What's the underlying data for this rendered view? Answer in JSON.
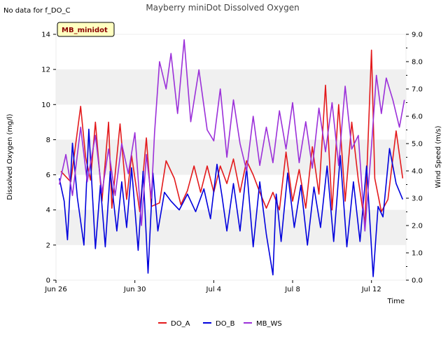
{
  "no_data_text": "No data for f_DO_C",
  "chart_data": {
    "type": "line",
    "title": "Mayberry miniDot Dissolved Oxygen",
    "xlabel": "Time",
    "ylabel": "Dissolved Oxygen (mg/l)",
    "y2label": "Wind Speed (m/s)",
    "badge": "MB_minidot",
    "xlim": [
      "2023-06-26",
      "2023-07-13T18:00"
    ],
    "xticks": [
      "Jun 26",
      "Jun 30",
      "Jul 4",
      "Jul 8",
      "Jul 12"
    ],
    "ylim": [
      0,
      14
    ],
    "yticks": [
      "0",
      "2",
      "4",
      "6",
      "8",
      "10",
      "12",
      "14"
    ],
    "y2lim": [
      0,
      9
    ],
    "y2ticks": [
      "0.0",
      "1.0",
      "2.0",
      "3.0",
      "4.0",
      "5.0",
      "6.0",
      "7.0",
      "8.0",
      "9.0"
    ],
    "shaded_bands": [
      [
        2,
        4
      ],
      [
        6,
        8
      ],
      [
        10,
        12
      ]
    ],
    "legend_position": "bottom",
    "series": [
      {
        "name": "DO_A",
        "color": "#e31a1c",
        "axis": "left",
        "x": [
          "2023-06-26T06:00",
          "2023-06-26T18:00",
          "2023-06-27T06:00",
          "2023-06-27T12:00",
          "2023-06-27T18:00",
          "2023-06-28T00:00",
          "2023-06-28T08:00",
          "2023-06-28T16:00",
          "2023-06-28T20:00",
          "2023-06-29T06:00",
          "2023-06-29T14:00",
          "2023-06-29T20:00",
          "2023-06-30T06:00",
          "2023-06-30T14:00",
          "2023-06-30T20:00",
          "2023-07-01T06:00",
          "2023-07-01T14:00",
          "2023-07-02T00:00",
          "2023-07-02T08:00",
          "2023-07-02T16:00",
          "2023-07-03T00:00",
          "2023-07-03T08:00",
          "2023-07-03T16:00",
          "2023-07-04T00:00",
          "2023-07-04T08:00",
          "2023-07-04T16:00",
          "2023-07-05T00:00",
          "2023-07-05T08:00",
          "2023-07-05T16:00",
          "2023-07-06T00:00",
          "2023-07-06T08:00",
          "2023-07-06T16:00",
          "2023-07-07T00:00",
          "2023-07-07T08:00",
          "2023-07-07T16:00",
          "2023-07-08T00:00",
          "2023-07-08T08:00",
          "2023-07-08T16:00",
          "2023-07-09T00:00",
          "2023-07-09T08:00",
          "2023-07-09T16:00",
          "2023-07-10T00:00",
          "2023-07-10T08:00",
          "2023-07-10T16:00",
          "2023-07-11T00:00",
          "2023-07-11T08:00",
          "2023-07-11T16:00",
          "2023-07-12T00:00",
          "2023-07-12T04:00",
          "2023-07-12T12:00",
          "2023-07-12T20:00",
          "2023-07-13T06:00",
          "2023-07-13T14:00"
        ],
        "y": [
          6.2,
          5.6,
          9.9,
          7.0,
          5.7,
          9.0,
          4.5,
          9.0,
          4.1,
          8.9,
          4.6,
          7.1,
          3.9,
          8.1,
          4.2,
          4.4,
          6.8,
          5.8,
          4.3,
          5.1,
          6.5,
          5.0,
          6.5,
          5.0,
          6.5,
          5.5,
          6.9,
          5.0,
          6.8,
          6.0,
          5.0,
          4.1,
          5.0,
          4.0,
          7.3,
          4.5,
          6.3,
          4.1,
          7.6,
          4.9,
          11.1,
          4.0,
          10.0,
          4.5,
          9.0,
          5.7,
          3.2,
          13.1,
          5.8,
          3.9,
          4.6,
          8.5,
          5.8
        ]
      },
      {
        "name": "DO_B",
        "color": "#0000dd",
        "axis": "left",
        "x": [
          "2023-06-26T04:00",
          "2023-06-26T10:00",
          "2023-06-26T14:00",
          "2023-06-26T20:00",
          "2023-06-27T02:00",
          "2023-06-27T10:00",
          "2023-06-27T16:00",
          "2023-06-28T00:00",
          "2023-06-28T06:00",
          "2023-06-28T12:00",
          "2023-06-28T18:00",
          "2023-06-29T02:00",
          "2023-06-29T08:00",
          "2023-06-29T14:00",
          "2023-06-29T20:00",
          "2023-06-30T04:00",
          "2023-06-30T10:00",
          "2023-06-30T16:00",
          "2023-06-30T22:00",
          "2023-07-01T04:00",
          "2023-07-01T12:00",
          "2023-07-01T20:00",
          "2023-07-02T06:00",
          "2023-07-02T16:00",
          "2023-07-03T02:00",
          "2023-07-03T12:00",
          "2023-07-03T20:00",
          "2023-07-04T04:00",
          "2023-07-04T10:00",
          "2023-07-04T16:00",
          "2023-07-05T00:00",
          "2023-07-05T08:00",
          "2023-07-05T16:00",
          "2023-07-06T00:00",
          "2023-07-06T08:00",
          "2023-07-06T16:00",
          "2023-07-07T00:00",
          "2023-07-07T04:00",
          "2023-07-07T10:00",
          "2023-07-07T18:00",
          "2023-07-08T02:00",
          "2023-07-08T10:00",
          "2023-07-08T18:00",
          "2023-07-09T02:00",
          "2023-07-09T10:00",
          "2023-07-09T18:00",
          "2023-07-10T02:00",
          "2023-07-10T10:00",
          "2023-07-10T18:00",
          "2023-07-11T02:00",
          "2023-07-11T10:00",
          "2023-07-11T18:00",
          "2023-07-12T02:00",
          "2023-07-12T08:00",
          "2023-07-12T14:00",
          "2023-07-12T22:00",
          "2023-07-13T06:00",
          "2023-07-13T14:00"
        ],
        "y": [
          5.8,
          4.5,
          2.3,
          7.8,
          4.7,
          2.0,
          8.6,
          1.8,
          5.4,
          1.9,
          6.2,
          2.8,
          5.6,
          3.0,
          6.4,
          1.7,
          6.2,
          0.4,
          6.1,
          2.8,
          5.0,
          4.5,
          4.0,
          4.9,
          3.9,
          5.2,
          3.5,
          6.6,
          4.8,
          2.8,
          5.5,
          2.8,
          6.4,
          1.9,
          5.6,
          2.6,
          0.3,
          4.9,
          2.2,
          6.1,
          3.0,
          5.4,
          2.0,
          5.3,
          3.0,
          6.5,
          2.2,
          7.1,
          1.9,
          5.6,
          2.2,
          6.5,
          0.2,
          4.2,
          3.6,
          7.5,
          5.5,
          4.6
        ]
      },
      {
        "name": "MB_WS",
        "color": "#9b30d9",
        "axis": "right",
        "x": [
          "2023-06-26T04:00",
          "2023-06-26T12:00",
          "2023-06-26T20:00",
          "2023-06-27T06:00",
          "2023-06-27T14:00",
          "2023-06-28T00:00",
          "2023-06-28T08:00",
          "2023-06-28T16:00",
          "2023-06-29T00:00",
          "2023-06-29T08:00",
          "2023-06-29T16:00",
          "2023-06-30T00:00",
          "2023-06-30T08:00",
          "2023-06-30T14:00",
          "2023-06-30T20:00",
          "2023-07-01T00:00",
          "2023-07-01T06:00",
          "2023-07-01T14:00",
          "2023-07-01T20:00",
          "2023-07-02T04:00",
          "2023-07-02T12:00",
          "2023-07-02T20:00",
          "2023-07-03T06:00",
          "2023-07-03T16:00",
          "2023-07-04T00:00",
          "2023-07-04T08:00",
          "2023-07-04T16:00",
          "2023-07-05T00:00",
          "2023-07-05T08:00",
          "2023-07-05T16:00",
          "2023-07-06T00:00",
          "2023-07-06T08:00",
          "2023-07-06T16:00",
          "2023-07-07T00:00",
          "2023-07-07T08:00",
          "2023-07-07T16:00",
          "2023-07-08T00:00",
          "2023-07-08T08:00",
          "2023-07-08T16:00",
          "2023-07-09T00:00",
          "2023-07-09T08:00",
          "2023-07-09T16:00",
          "2023-07-10T00:00",
          "2023-07-10T08:00",
          "2023-07-10T16:00",
          "2023-07-11T00:00",
          "2023-07-11T08:00",
          "2023-07-11T16:00",
          "2023-07-12T00:00",
          "2023-07-12T06:00",
          "2023-07-12T12:00",
          "2023-07-12T18:00",
          "2023-07-13T02:00",
          "2023-07-13T10:00",
          "2023-07-13T16:00"
        ],
        "y": [
          3.5,
          4.6,
          3.1,
          5.6,
          3.6,
          5.3,
          3.2,
          4.8,
          3.1,
          5.0,
          3.9,
          5.4,
          2.0,
          4.6,
          3.0,
          5.4,
          8.0,
          7.0,
          8.3,
          6.1,
          8.8,
          5.8,
          7.7,
          5.5,
          5.1,
          7.0,
          4.5,
          6.6,
          5.0,
          4.0,
          6.0,
          4.2,
          5.6,
          4.3,
          6.2,
          4.8,
          6.5,
          4.3,
          5.8,
          4.1,
          6.3,
          4.7,
          6.5,
          4.2,
          7.1,
          4.8,
          5.3,
          1.8,
          4.9,
          7.5,
          6.1,
          7.4,
          6.6,
          5.6,
          6.6
        ]
      }
    ]
  }
}
